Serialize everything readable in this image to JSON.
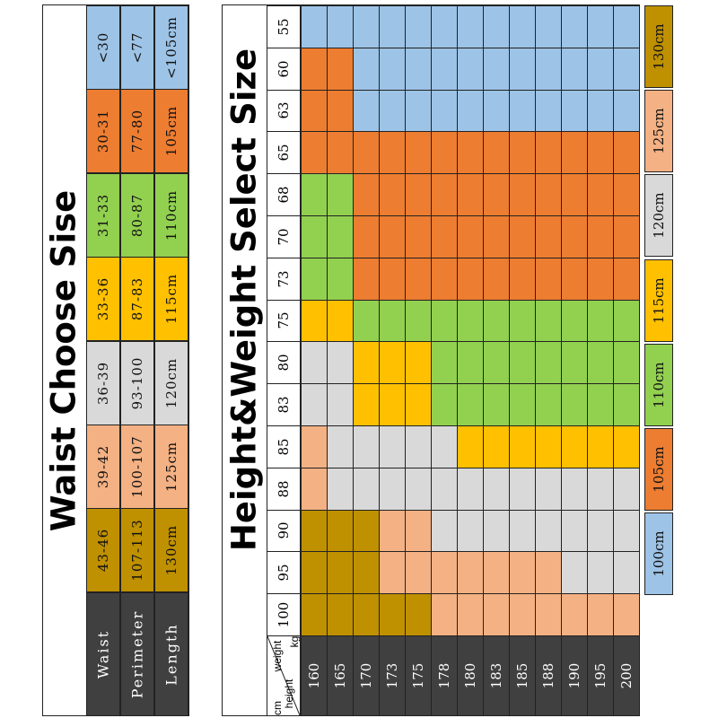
{
  "colors": {
    "blue": "#9dc3e6",
    "orange": "#ed7d31",
    "green": "#92d050",
    "yellow": "#ffc000",
    "grey": "#d9d9d9",
    "peach": "#f4b183",
    "gold": "#bf9000",
    "dark": "#404040",
    "white": "#ffffff"
  },
  "waist_panel": {
    "title": "Waist Choose Sise",
    "row_labels": [
      "Waist",
      "Perimeter",
      "Length"
    ],
    "columns": [
      {
        "color": "blue",
        "waist": "<30",
        "perimeter": "<77",
        "length": "<105cm"
      },
      {
        "color": "orange",
        "waist": "30-31",
        "perimeter": "77-80",
        "length": "105cm"
      },
      {
        "color": "green",
        "waist": "31-33",
        "perimeter": "80-87",
        "length": "110cm"
      },
      {
        "color": "yellow",
        "waist": "33-36",
        "perimeter": "87-83",
        "length": "115cm"
      },
      {
        "color": "grey",
        "waist": "36-39",
        "perimeter": "93-100",
        "length": "120cm"
      },
      {
        "color": "peach",
        "waist": "39-42",
        "perimeter": "100-107",
        "length": "125cm"
      },
      {
        "color": "gold",
        "waist": "43-46",
        "perimeter": "107-113",
        "length": "130cm"
      }
    ]
  },
  "grid_panel": {
    "title": "Height&Weight Select Size",
    "corner": {
      "weight": "weight",
      "kg": "kg",
      "cm": "cm",
      "height": "height"
    },
    "weights": [
      "55",
      "60",
      "63",
      "65",
      "68",
      "70",
      "73",
      "75",
      "80",
      "83",
      "85",
      "88",
      "90",
      "95",
      "100"
    ],
    "heights": [
      "160",
      "165",
      "170",
      "173",
      "175",
      "178",
      "180",
      "183",
      "185",
      "188",
      "190",
      "195",
      "200"
    ],
    "rows": [
      [
        "blue",
        "blue",
        "blue",
        "blue",
        "blue",
        "blue",
        "blue",
        "blue",
        "blue",
        "blue",
        "blue",
        "blue",
        "blue"
      ],
      [
        "orange",
        "orange",
        "blue",
        "blue",
        "blue",
        "blue",
        "blue",
        "blue",
        "blue",
        "blue",
        "blue",
        "blue",
        "blue"
      ],
      [
        "orange",
        "orange",
        "blue",
        "blue",
        "blue",
        "blue",
        "blue",
        "blue",
        "blue",
        "blue",
        "blue",
        "blue",
        "blue"
      ],
      [
        "orange",
        "orange",
        "orange",
        "orange",
        "orange",
        "orange",
        "orange",
        "orange",
        "orange",
        "orange",
        "orange",
        "orange",
        "orange"
      ],
      [
        "green",
        "green",
        "orange",
        "orange",
        "orange",
        "orange",
        "orange",
        "orange",
        "orange",
        "orange",
        "orange",
        "orange",
        "orange"
      ],
      [
        "green",
        "green",
        "orange",
        "orange",
        "orange",
        "orange",
        "orange",
        "orange",
        "orange",
        "orange",
        "orange",
        "orange",
        "orange"
      ],
      [
        "green",
        "green",
        "orange",
        "orange",
        "orange",
        "orange",
        "orange",
        "orange",
        "orange",
        "orange",
        "orange",
        "orange",
        "orange"
      ],
      [
        "yellow",
        "yellow",
        "green",
        "green",
        "green",
        "green",
        "green",
        "green",
        "green",
        "green",
        "green",
        "green",
        "green"
      ],
      [
        "grey",
        "grey",
        "yellow",
        "yellow",
        "yellow",
        "green",
        "green",
        "green",
        "green",
        "green",
        "green",
        "green",
        "green"
      ],
      [
        "grey",
        "grey",
        "yellow",
        "yellow",
        "yellow",
        "green",
        "green",
        "green",
        "green",
        "green",
        "green",
        "green",
        "green"
      ],
      [
        "peach",
        "grey",
        "grey",
        "grey",
        "grey",
        "grey",
        "yellow",
        "yellow",
        "yellow",
        "yellow",
        "yellow",
        "yellow",
        "yellow"
      ],
      [
        "peach",
        "grey",
        "grey",
        "grey",
        "grey",
        "grey",
        "grey",
        "grey",
        "grey",
        "grey",
        "grey",
        "grey",
        "grey"
      ],
      [
        "gold",
        "gold",
        "gold",
        "peach",
        "peach",
        "grey",
        "grey",
        "grey",
        "grey",
        "grey",
        "grey",
        "grey",
        "grey"
      ],
      [
        "gold",
        "gold",
        "gold",
        "peach",
        "peach",
        "peach",
        "peach",
        "peach",
        "peach",
        "peach",
        "grey",
        "grey",
        "grey"
      ],
      [
        "gold",
        "gold",
        "gold",
        "gold",
        "gold",
        "peach",
        "peach",
        "peach",
        "peach",
        "peach",
        "peach",
        "peach",
        "peach"
      ]
    ]
  },
  "legend": [
    {
      "color": "gold",
      "label": "130cm"
    },
    {
      "color": "peach",
      "label": "125cm"
    },
    {
      "color": "grey",
      "label": "120cm"
    },
    {
      "color": "yellow",
      "label": "115cm"
    },
    {
      "color": "green",
      "label": "110cm"
    },
    {
      "color": "orange",
      "label": "105cm"
    },
    {
      "color": "blue",
      "label": "100cm"
    }
  ]
}
